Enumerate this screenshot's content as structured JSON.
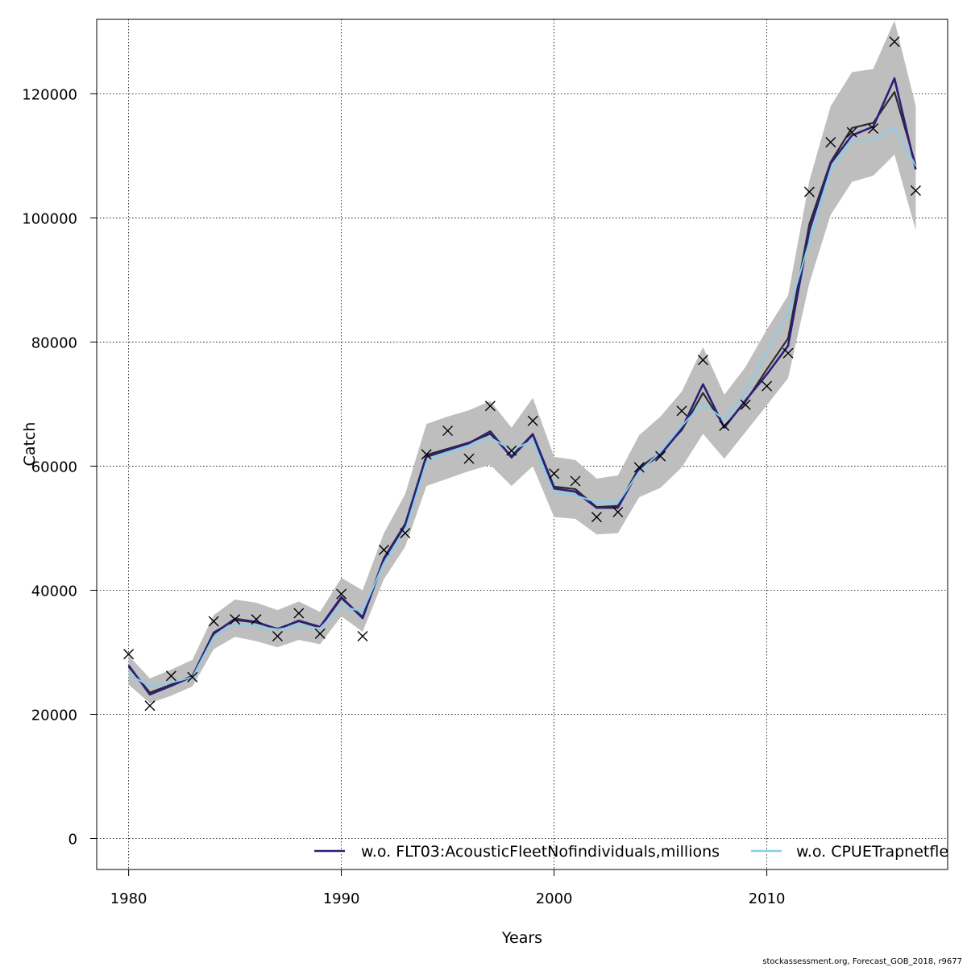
{
  "chart_data": {
    "type": "line",
    "title": "",
    "xlabel": "Years",
    "ylabel": "Catch",
    "xlim": [
      1978.5,
      2018.5
    ],
    "ylim": [
      -5000,
      132000
    ],
    "x_ticks": [
      1980,
      1990,
      2000,
      2010
    ],
    "y_ticks": [
      0,
      20000,
      40000,
      60000,
      80000,
      100000,
      120000
    ],
    "grid": true,
    "legend_placement": "bottom-right",
    "x": [
      1980,
      1981,
      1982,
      1983,
      1984,
      1985,
      1986,
      1987,
      1988,
      1989,
      1990,
      1991,
      1992,
      1993,
      1994,
      1995,
      1996,
      1997,
      1998,
      1999,
      2000,
      2001,
      2002,
      2003,
      2004,
      2005,
      2006,
      2007,
      2008,
      2009,
      2010,
      2011,
      2012,
      2013,
      2014,
      2015,
      2016,
      2017
    ],
    "band": {
      "color": "#bebebe",
      "upper": [
        29500,
        25800,
        27200,
        28800,
        36000,
        38500,
        38000,
        36800,
        38200,
        36500,
        42000,
        40000,
        49200,
        55500,
        66800,
        68000,
        69000,
        70500,
        66200,
        71000,
        61500,
        61000,
        58000,
        58500,
        65000,
        68000,
        72000,
        79200,
        71500,
        76000,
        82000,
        87500,
        106000,
        118000,
        123500,
        124000,
        131800,
        118000
      ],
      "lower": [
        24800,
        21800,
        23000,
        24500,
        30500,
        32500,
        31800,
        30800,
        32000,
        31300,
        35800,
        33300,
        41800,
        47000,
        56800,
        58000,
        59200,
        60200,
        56800,
        60000,
        51800,
        51500,
        49000,
        49200,
        55000,
        56500,
        59800,
        65200,
        61200,
        65500,
        69800,
        74200,
        89500,
        100500,
        105800,
        106800,
        110200,
        98000
      ]
    },
    "series": [
      {
        "name": "",
        "color": "#2b2b2b",
        "values": [
          27700,
          23500,
          24800,
          26200,
          33200,
          35200,
          34800,
          33800,
          35000,
          34000,
          38700,
          35700,
          45200,
          50700,
          61800,
          62800,
          63800,
          65200,
          61600,
          65200,
          56700,
          56300,
          53400,
          53600,
          59800,
          62100,
          65800,
          71800,
          66400,
          70400,
          75600,
          80600,
          99000,
          109000,
          114500,
          115300,
          120300,
          108500
        ]
      },
      {
        "name": "w.o. FLT03:AcousticFleetNofindividuals,millions",
        "color": "#2b1f7a",
        "values": [
          27900,
          23200,
          24600,
          26100,
          33000,
          35400,
          34900,
          33700,
          35100,
          34100,
          38900,
          35500,
          45000,
          50500,
          61500,
          62600,
          63700,
          65600,
          61400,
          65100,
          56400,
          55900,
          53300,
          53300,
          59500,
          61800,
          66000,
          73200,
          66200,
          70600,
          74800,
          79400,
          98000,
          108800,
          113300,
          114700,
          122500,
          107800
        ]
      },
      {
        "name": "w.o. CPUETrapnetfleet",
        "color": "#87ceeb",
        "values": [
          26500,
          24500,
          25100,
          26000,
          32500,
          34600,
          34200,
          33700,
          34200,
          33900,
          37400,
          36600,
          44400,
          49600,
          60700,
          62200,
          63200,
          64600,
          62600,
          64100,
          55700,
          55300,
          54200,
          54100,
          59100,
          62300,
          66500,
          70100,
          67500,
          71900,
          78600,
          84600,
          96200,
          107600,
          112600,
          112600,
          114600,
          108400
        ]
      }
    ],
    "observed": {
      "marker": "x",
      "values": [
        29700,
        21400,
        26200,
        26000,
        35000,
        35300,
        35300,
        32600,
        36300,
        33000,
        39400,
        32600,
        46500,
        49200,
        61900,
        65700,
        61200,
        69700,
        62500,
        67300,
        58800,
        57600,
        51800,
        52600,
        59800,
        61600,
        68900,
        77100,
        66500,
        69900,
        72900,
        78200,
        104200,
        112200,
        113800,
        114400,
        128400,
        104400
      ]
    }
  },
  "legend": {
    "items": [
      {
        "label": "w.o. FLT03:AcousticFleetNofindividuals,millions",
        "color": "#2b1f7a"
      },
      {
        "label": "w.o. CPUETrapnetfleet",
        "color": "#87ceeb"
      }
    ]
  },
  "footer": {
    "credit": "stockassessment.org, Forecast_GOB_2018, r9677"
  }
}
